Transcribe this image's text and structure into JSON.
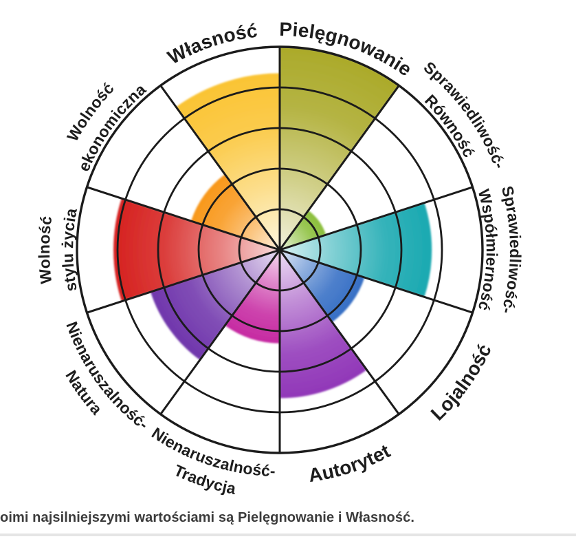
{
  "chart_data": {
    "type": "polar-wheel",
    "title": "",
    "rings": 5,
    "ring_fractions": [
      0.2,
      0.4,
      0.6,
      0.8,
      1.0
    ],
    "sector_span_deg": 36,
    "start_angle_deg": 0,
    "max_value": 1.0,
    "grid_color": "#1b1b1b",
    "label_color": "#1d1d1d",
    "background_color": "#ffffff",
    "sectors": [
      {
        "name": "pielegnowanie",
        "label_lines": [
          "Pielęgnowanie"
        ],
        "value": 1.0,
        "color": "#abaa2a"
      },
      {
        "name": "sprawiedliwosc-rownosc",
        "label_lines": [
          "Sprawiedliwość-",
          "Równość"
        ],
        "value": 0.24,
        "color": "#8bbf3c"
      },
      {
        "name": "sprawiedliwosc-wspolmiernosc",
        "label_lines": [
          "Sprawiedliwość-",
          "Współmierność"
        ],
        "value": 0.75,
        "color": "#1aa9b1"
      },
      {
        "name": "lojalnosc",
        "label_lines": [
          "Lojalność"
        ],
        "value": 0.44,
        "color": "#366fc5"
      },
      {
        "name": "autorytet",
        "label_lines": [
          "Autorytet"
        ],
        "value": 0.73,
        "color": "#9137b8"
      },
      {
        "name": "nienaruszalnosc-tradycja",
        "label_lines": [
          "Nienaruszalność-",
          "Tradycja"
        ],
        "value": 0.46,
        "color": "#c62aa2"
      },
      {
        "name": "nienaruszalnosc-natura",
        "label_lines": [
          "Nienaruszalność-",
          "Natura"
        ],
        "value": 0.67,
        "color": "#7036ac"
      },
      {
        "name": "wolnosc-stylu-zycia",
        "label_lines": [
          "Wolność",
          "stylu życia"
        ],
        "value": 0.82,
        "color": "#d62220"
      },
      {
        "name": "wolnosc-ekonomiczna",
        "label_lines": [
          "Wolność",
          "ekonomiczna"
        ],
        "value": 0.46,
        "color": "#f8981b"
      },
      {
        "name": "wlasnosc",
        "label_lines": [
          "Własność"
        ],
        "value": 0.87,
        "color": "#fac434"
      }
    ]
  },
  "caption": {
    "text": "oimi najsilniejszymi wartościami są Pielęgnowanie i Własność."
  }
}
